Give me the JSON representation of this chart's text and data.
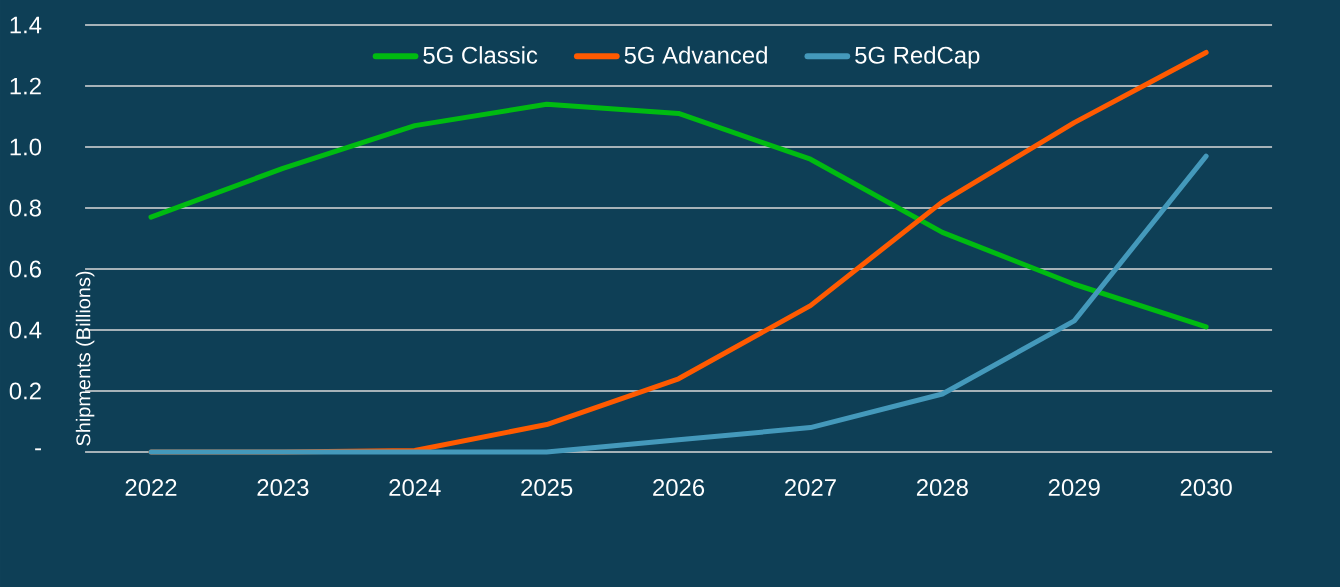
{
  "chart_data": {
    "type": "line",
    "ylabel": "Shipments (Billions)",
    "categories": [
      "2022",
      "2023",
      "2024",
      "2025",
      "2026",
      "2027",
      "2028",
      "2029",
      "2030"
    ],
    "series": [
      {
        "name": "5G Classic",
        "color": "#00bb11",
        "values": [
          0.77,
          0.93,
          1.07,
          1.14,
          1.11,
          0.96,
          0.72,
          0.55,
          0.41
        ]
      },
      {
        "name": "5G Advanced",
        "color": "#ff5a00",
        "values": [
          0,
          0,
          0.005,
          0.09,
          0.24,
          0.48,
          0.82,
          1.08,
          1.31
        ]
      },
      {
        "name": "5G RedCap",
        "color": "#4499bb",
        "values": [
          0,
          0,
          0,
          0,
          0.04,
          0.08,
          0.19,
          0.43,
          0.97
        ]
      }
    ],
    "ylim": [
      0,
      1.4
    ],
    "yticks": [
      {
        "value": 0,
        "label": "-"
      },
      0.2,
      0.4,
      0.6,
      0.8,
      {
        "value": 1,
        "label": "1.0"
      },
      1.2,
      1.4
    ],
    "grid": "y",
    "legend": "top",
    "marker": "none",
    "line_style": "solid"
  }
}
